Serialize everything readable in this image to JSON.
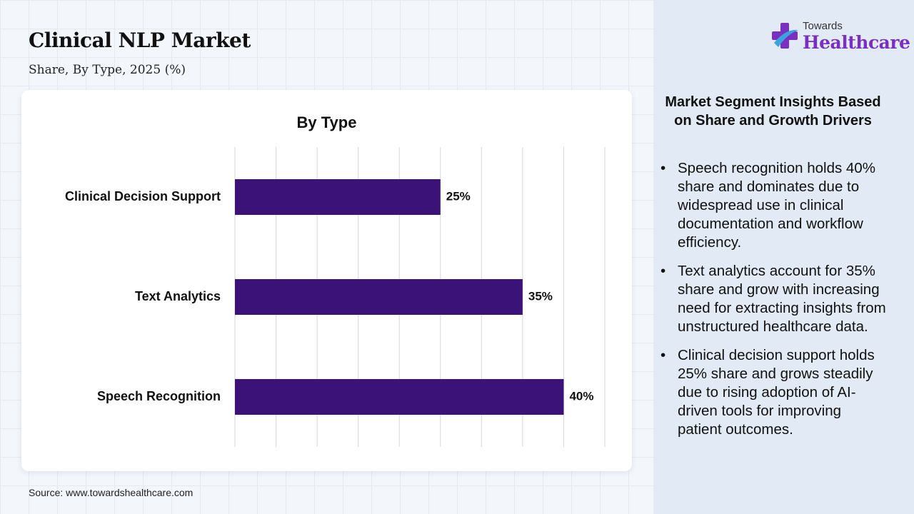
{
  "header": {
    "title": "Clinical NLP Market",
    "subtitle": "Share, By Type, 2025 (%)"
  },
  "logo": {
    "top_text": "Towards",
    "main_text": "Healthcare",
    "icon": "plus-cross-logo-icon",
    "colors": {
      "purple": "#7a2fc0",
      "blue": "#3aa3e0"
    }
  },
  "chart_data": {
    "type": "bar",
    "orientation": "horizontal",
    "title": "By Type",
    "categories": [
      "Clinical Decision Support",
      "Text Analytics",
      "Speech Recognition"
    ],
    "values": [
      25,
      35,
      40
    ],
    "data_labels": [
      "25%",
      "35%",
      "40%"
    ],
    "xlim": [
      0,
      45
    ],
    "grid": true,
    "bar_color": "#3b1278",
    "xlabel": "",
    "ylabel": ""
  },
  "insights": {
    "title": "Market Segment Insights Based on Share and Growth Drivers",
    "bullet": "•",
    "items": [
      "Speech recognition holds 40% share and dominates due to widespread use in clinical documentation and workflow efficiency.",
      "Text analytics account for 35% share and grow with increasing need for extracting insights from unstructured healthcare data.",
      "Clinical decision support holds 25% share and grows steadily due to rising adoption of AI-driven tools for improving patient outcomes."
    ]
  },
  "source": "Source: www.towardshealthcare.com"
}
